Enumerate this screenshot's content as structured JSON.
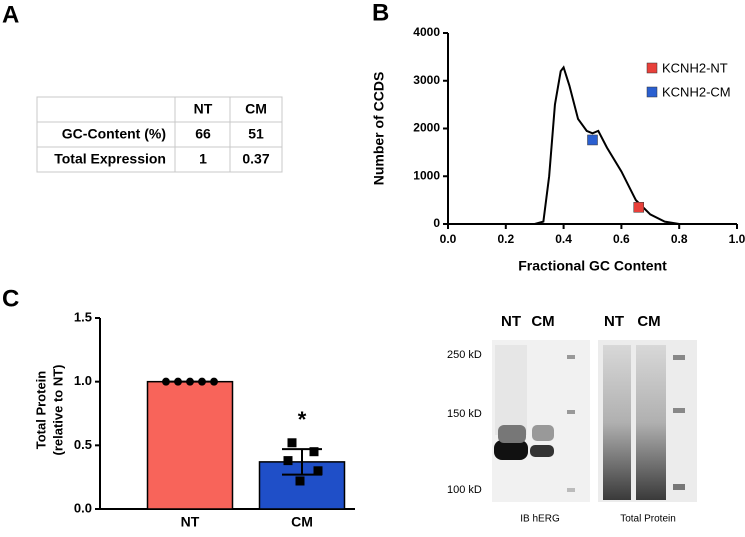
{
  "panel_labels": [
    "A",
    "B",
    "C"
  ],
  "table": {
    "columns": [
      "NT",
      "CM"
    ],
    "rows": [
      {
        "label": "GC-Content (%)",
        "values": [
          66,
          51
        ]
      },
      {
        "label": "Total Expression",
        "values": [
          1,
          0.37
        ]
      }
    ]
  },
  "chart_data": [
    {
      "type": "line",
      "xlabel": "Fractional GC Content",
      "ylabel": "Number of CCDS",
      "xlim": [
        0,
        1
      ],
      "xticks": [
        {
          "value": 0,
          "label": "0.0"
        },
        0.2,
        0.4,
        0.6,
        0.8,
        {
          "value": 1,
          "label": "1.0"
        }
      ],
      "ylim": [
        0,
        4000
      ],
      "yticks": [
        0,
        1000,
        2000,
        3000,
        4000
      ],
      "series": [
        {
          "color": "#000000",
          "x": [
            0.3,
            0.33,
            0.35,
            0.37,
            0.39,
            0.4,
            0.42,
            0.45,
            0.48,
            0.5,
            0.52,
            0.55,
            0.6,
            0.65,
            0.7,
            0.75,
            0.8
          ],
          "values": [
            0,
            50,
            1000,
            2500,
            3200,
            3280,
            2900,
            2200,
            1950,
            1900,
            1950,
            1600,
            1100,
            500,
            200,
            50,
            0
          ]
        }
      ],
      "points": [
        {
          "name": "KCNH2-NT",
          "color": "#e8403a",
          "x": 0.66,
          "y": 350
        },
        {
          "name": "KCNH2-CM",
          "color": "#2a5fd0",
          "x": 0.5,
          "y": 1760
        }
      ]
    },
    {
      "type": "bar",
      "ylabel": [
        "Total Protein",
        "(relative to NT)"
      ],
      "categories": [
        "NT",
        "CM"
      ],
      "values": [
        1,
        0.37
      ],
      "errors": [
        0,
        0.1
      ],
      "colors": [
        "#f8645a",
        "#1f4fc8"
      ],
      "points": [
        [
          1,
          1,
          1,
          1,
          1
        ],
        [
          0.52,
          0.45,
          0.38,
          0.3,
          0.22
        ]
      ],
      "annotation": "*",
      "ylim": [
        0,
        1.5
      ],
      "yticks": [
        {
          "value": 0,
          "label": "0.0"
        },
        0.5,
        {
          "value": 1,
          "label": "1.0"
        },
        1.5
      ]
    }
  ],
  "blot": {
    "markers": [
      "250 kD",
      "150 kD",
      "100 kD"
    ],
    "panels": [
      {
        "lanes": [
          "NT",
          "CM"
        ],
        "caption": "IB hERG"
      },
      {
        "lanes": [
          "NT",
          "CM"
        ],
        "caption": "Total Protein"
      }
    ]
  }
}
